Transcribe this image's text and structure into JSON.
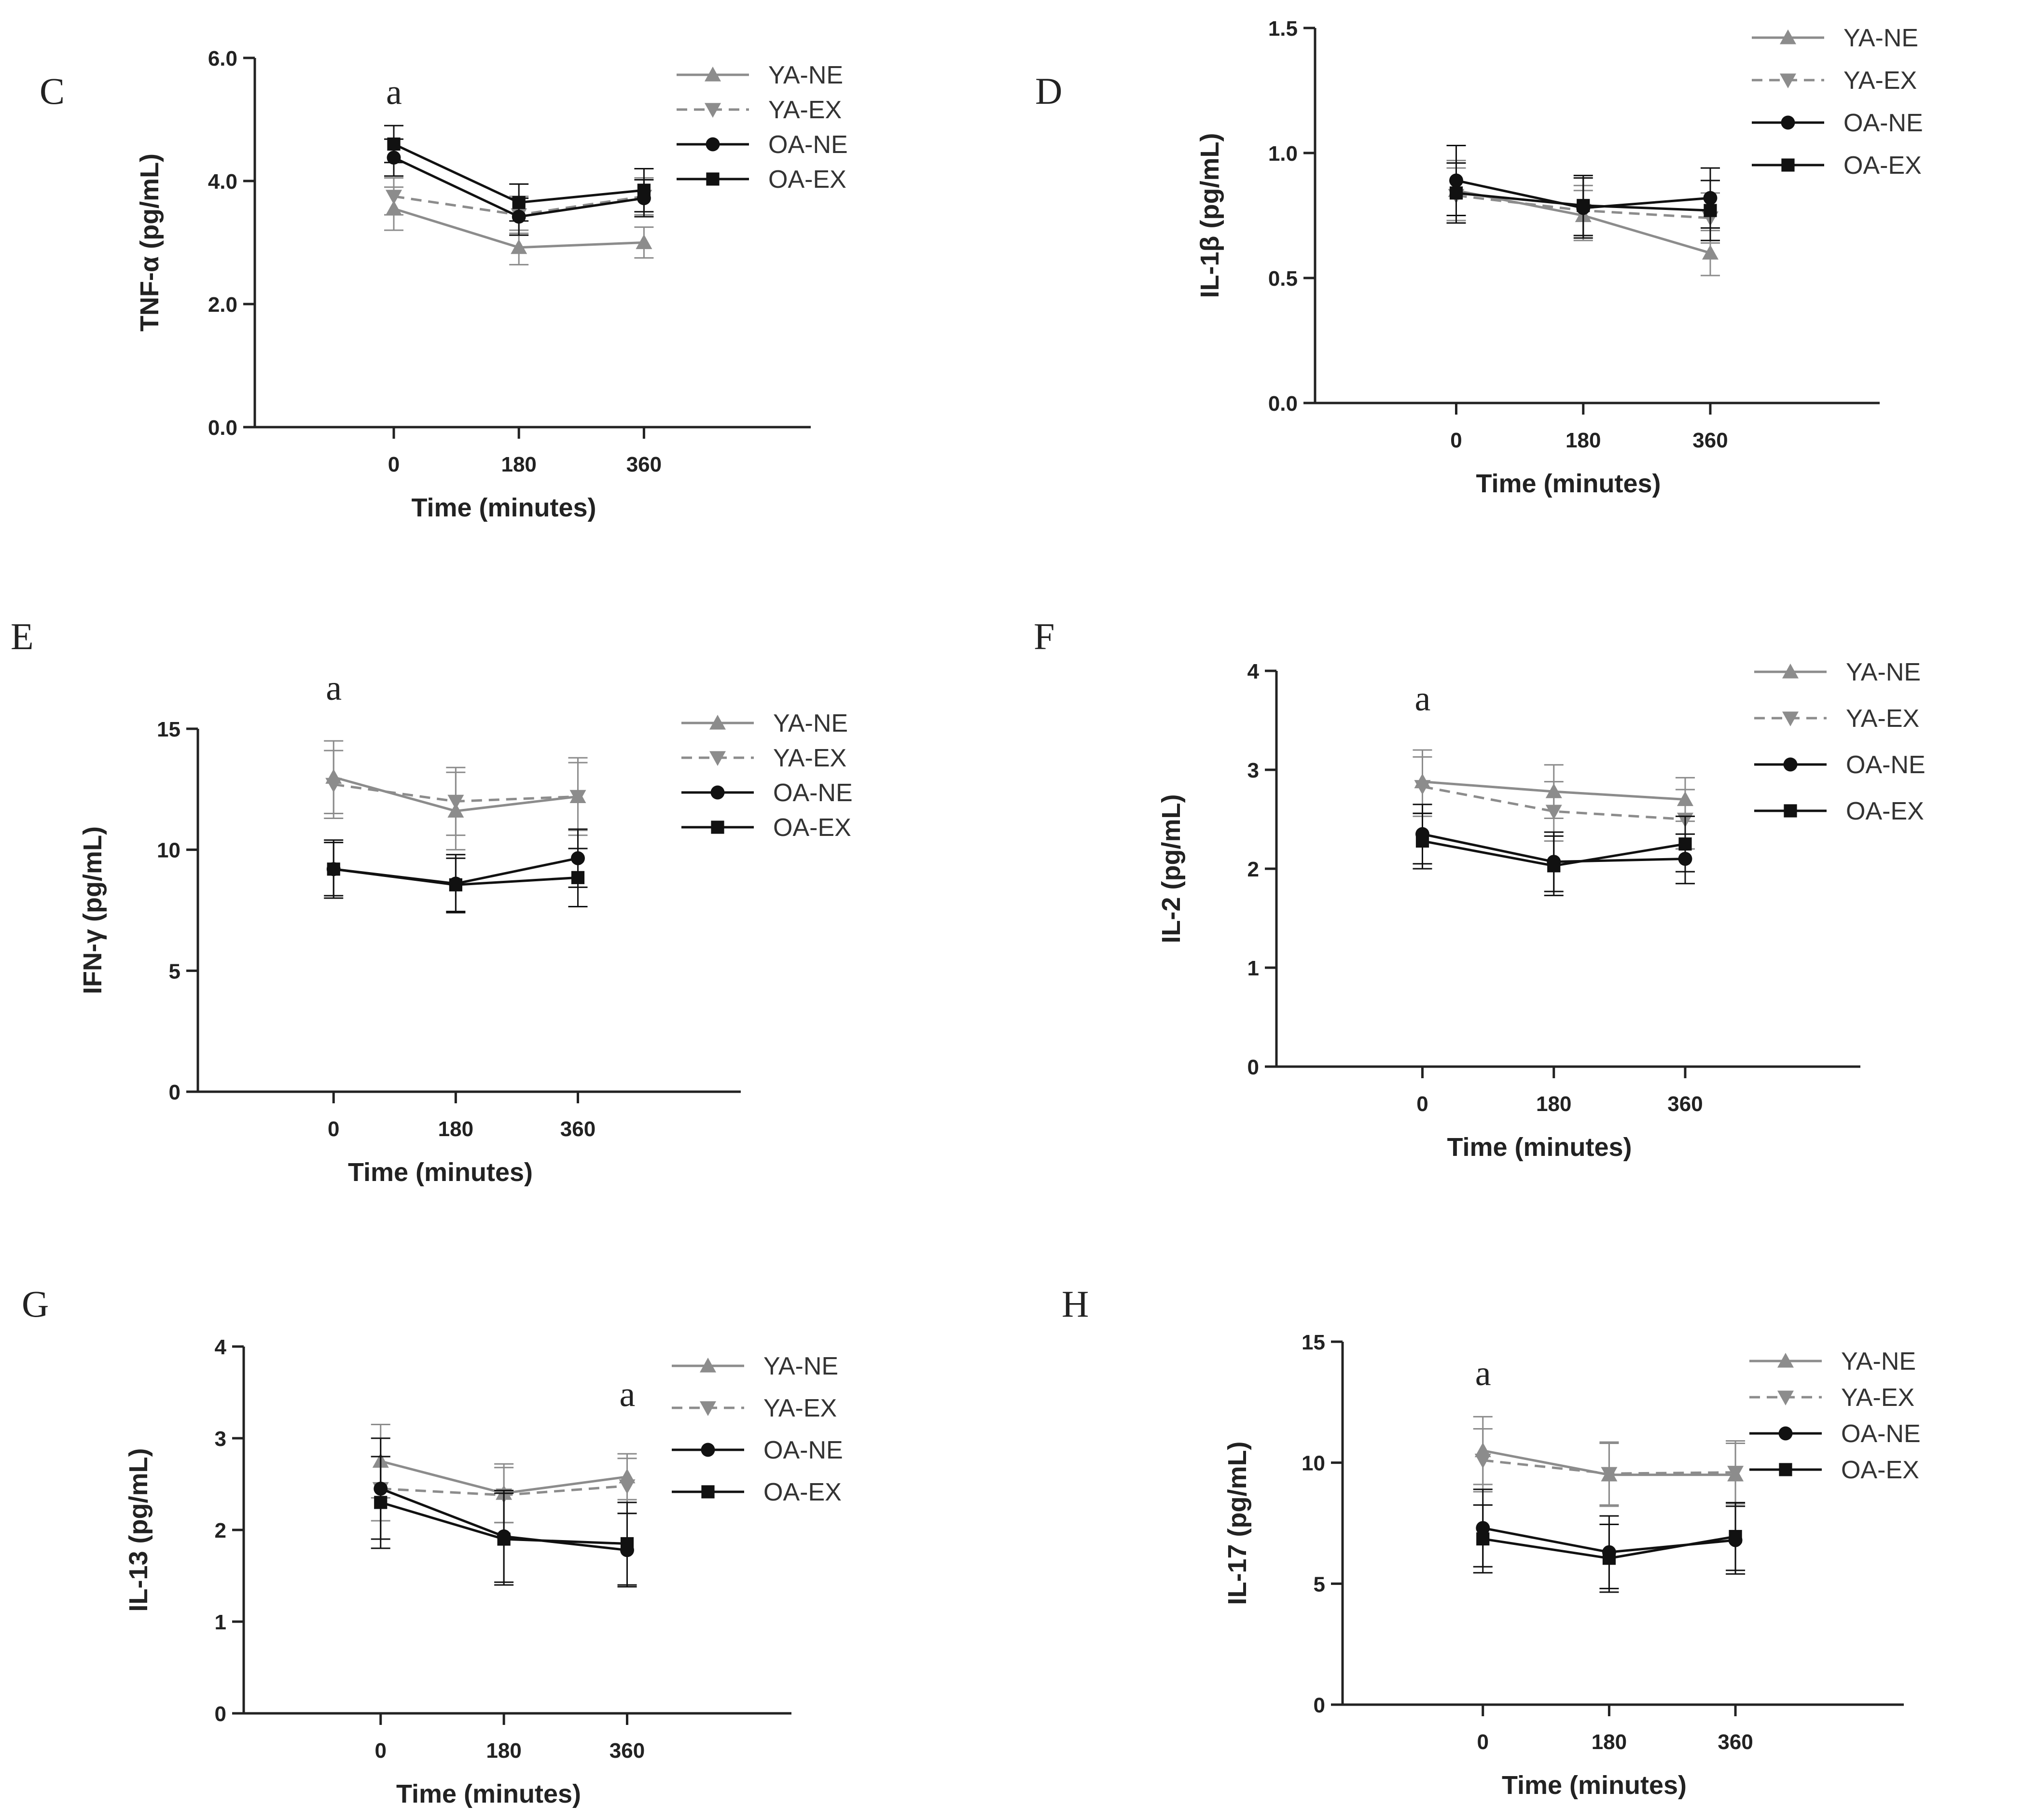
{
  "figure": {
    "style": {
      "young_color": "#8c8c8c",
      "old_color": "#111111"
    }
  },
  "chart_data": [
    {
      "type": "line",
      "panel": "C",
      "xlabel": "Time (minutes)",
      "ylabel": "TNF-α (pg/mL)",
      "x": [
        0,
        180,
        360
      ],
      "xticks": [
        "0",
        "180",
        "360"
      ],
      "xlim": [
        -200,
        600
      ],
      "ylim": [
        0,
        6
      ],
      "yticks": [
        "0.0",
        "2.0",
        "4.0",
        "6.0"
      ],
      "annotations": [
        {
          "text": "a",
          "x": 0,
          "y": 5.25
        }
      ],
      "series": [
        {
          "name": "YA-NE",
          "values": [
            3.55,
            2.92,
            3.0
          ],
          "errors": [
            0.35,
            0.28,
            0.25
          ]
        },
        {
          "name": "YA-EX",
          "values": [
            3.75,
            3.45,
            3.75
          ],
          "errors": [
            0.3,
            0.3,
            0.3
          ]
        },
        {
          "name": "OA-NE",
          "values": [
            4.38,
            3.42,
            3.72
          ],
          "errors": [
            0.3,
            0.3,
            0.3
          ]
        },
        {
          "name": "OA-EX",
          "values": [
            4.6,
            3.65,
            3.85
          ],
          "errors": [
            0.3,
            0.3,
            0.35
          ]
        }
      ]
    },
    {
      "type": "line",
      "panel": "D",
      "xlabel": "Time (minutes)",
      "ylabel": "IL-1β (pg/mL)",
      "x": [
        0,
        180,
        360
      ],
      "xticks": [
        "0",
        "180",
        "360"
      ],
      "xlim": [
        -200,
        600
      ],
      "ylim": [
        0,
        1.5
      ],
      "yticks": [
        "0.0",
        "0.5",
        "1.0",
        "1.5"
      ],
      "annotations": [],
      "series": [
        {
          "name": "YA-NE",
          "values": [
            0.85,
            0.75,
            0.6
          ],
          "errors": [
            0.12,
            0.1,
            0.09
          ]
        },
        {
          "name": "YA-EX",
          "values": [
            0.83,
            0.77,
            0.74
          ],
          "errors": [
            0.11,
            0.1,
            0.1
          ]
        },
        {
          "name": "OA-NE",
          "values": [
            0.89,
            0.78,
            0.82
          ],
          "errors": [
            0.14,
            0.12,
            0.12
          ]
        },
        {
          "name": "OA-EX",
          "values": [
            0.84,
            0.79,
            0.77
          ],
          "errors": [
            0.12,
            0.12,
            0.12
          ]
        }
      ]
    },
    {
      "type": "line",
      "panel": "E",
      "xlabel": "Time (minutes)",
      "ylabel": "IFN-γ (pg/mL)",
      "x": [
        0,
        180,
        360
      ],
      "xticks": [
        "0",
        "180",
        "360"
      ],
      "xlim": [
        -200,
        600
      ],
      "ylim": [
        0,
        15
      ],
      "yticks": [
        "0",
        "5",
        "10",
        "15"
      ],
      "annotations": [
        {
          "text": "a",
          "x": 0,
          "y": 16.2
        }
      ],
      "series": [
        {
          "name": "YA-NE",
          "values": [
            13.0,
            11.6,
            12.2
          ],
          "errors": [
            1.5,
            1.6,
            1.6
          ]
        },
        {
          "name": "YA-EX",
          "values": [
            12.7,
            12.0,
            12.2
          ],
          "errors": [
            1.4,
            1.4,
            1.4
          ]
        },
        {
          "name": "OA-NE",
          "values": [
            9.2,
            8.6,
            9.65
          ],
          "errors": [
            1.2,
            1.2,
            1.2
          ]
        },
        {
          "name": "OA-EX",
          "values": [
            9.2,
            8.55,
            8.85
          ],
          "errors": [
            1.1,
            1.1,
            1.2
          ]
        }
      ]
    },
    {
      "type": "line",
      "panel": "F",
      "xlabel": "Time (minutes)",
      "ylabel": "IL-2 (pg/mL)",
      "x": [
        0,
        180,
        360
      ],
      "xticks": [
        "0",
        "180",
        "360"
      ],
      "xlim": [
        -200,
        600
      ],
      "ylim": [
        0,
        4
      ],
      "yticks": [
        "0",
        "1",
        "2",
        "3",
        "4"
      ],
      "annotations": [
        {
          "text": "a",
          "x": 0,
          "y": 3.6
        }
      ],
      "series": [
        {
          "name": "YA-NE",
          "values": [
            2.88,
            2.78,
            2.7
          ],
          "errors": [
            0.32,
            0.27,
            0.22
          ]
        },
        {
          "name": "YA-EX",
          "values": [
            2.83,
            2.58,
            2.5
          ],
          "errors": [
            0.3,
            0.3,
            0.3
          ]
        },
        {
          "name": "OA-NE",
          "values": [
            2.35,
            2.07,
            2.1
          ],
          "errors": [
            0.3,
            0.3,
            0.25
          ]
        },
        {
          "name": "OA-EX",
          "values": [
            2.28,
            2.03,
            2.25
          ],
          "errors": [
            0.28,
            0.3,
            0.28
          ]
        }
      ]
    },
    {
      "type": "line",
      "panel": "G",
      "xlabel": "Time (minutes)",
      "ylabel": "IL-13 (pg/mL)",
      "x": [
        0,
        180,
        360
      ],
      "xticks": [
        "0",
        "180",
        "360"
      ],
      "xlim": [
        -200,
        600
      ],
      "ylim": [
        0,
        4
      ],
      "yticks": [
        "0",
        "1",
        "2",
        "3",
        "4"
      ],
      "annotations": [
        {
          "text": "a",
          "x": 360,
          "y": 3.35
        }
      ],
      "series": [
        {
          "name": "YA-NE",
          "values": [
            2.75,
            2.4,
            2.58
          ],
          "errors": [
            0.4,
            0.32,
            0.25
          ]
        },
        {
          "name": "YA-EX",
          "values": [
            2.45,
            2.38,
            2.48
          ],
          "errors": [
            0.35,
            0.3,
            0.3
          ]
        },
        {
          "name": "OA-NE",
          "values": [
            2.45,
            1.93,
            1.78
          ],
          "errors": [
            0.55,
            0.5,
            0.4
          ]
        },
        {
          "name": "OA-EX",
          "values": [
            2.3,
            1.9,
            1.85
          ],
          "errors": [
            0.5,
            0.5,
            0.45
          ]
        }
      ]
    },
    {
      "type": "line",
      "panel": "H",
      "xlabel": "Time (minutes)",
      "ylabel": "IL-17 (pg/mL)",
      "x": [
        0,
        180,
        360
      ],
      "xticks": [
        "0",
        "180",
        "360"
      ],
      "xlim": [
        -200,
        600
      ],
      "ylim": [
        0,
        15
      ],
      "yticks": [
        "0",
        "5",
        "10",
        "15"
      ],
      "annotations": [
        {
          "text": "a",
          "x": 0,
          "y": 13.2
        }
      ],
      "series": [
        {
          "name": "YA-NE",
          "values": [
            10.5,
            9.5,
            9.5
          ],
          "errors": [
            1.4,
            1.3,
            1.3
          ]
        },
        {
          "name": "YA-EX",
          "values": [
            10.1,
            9.55,
            9.6
          ],
          "errors": [
            1.3,
            1.3,
            1.3
          ]
        },
        {
          "name": "OA-NE",
          "values": [
            7.3,
            6.3,
            6.8
          ],
          "errors": [
            1.6,
            1.5,
            1.4
          ]
        },
        {
          "name": "OA-EX",
          "values": [
            6.85,
            6.05,
            6.95
          ],
          "errors": [
            1.4,
            1.4,
            1.4
          ]
        }
      ]
    }
  ]
}
